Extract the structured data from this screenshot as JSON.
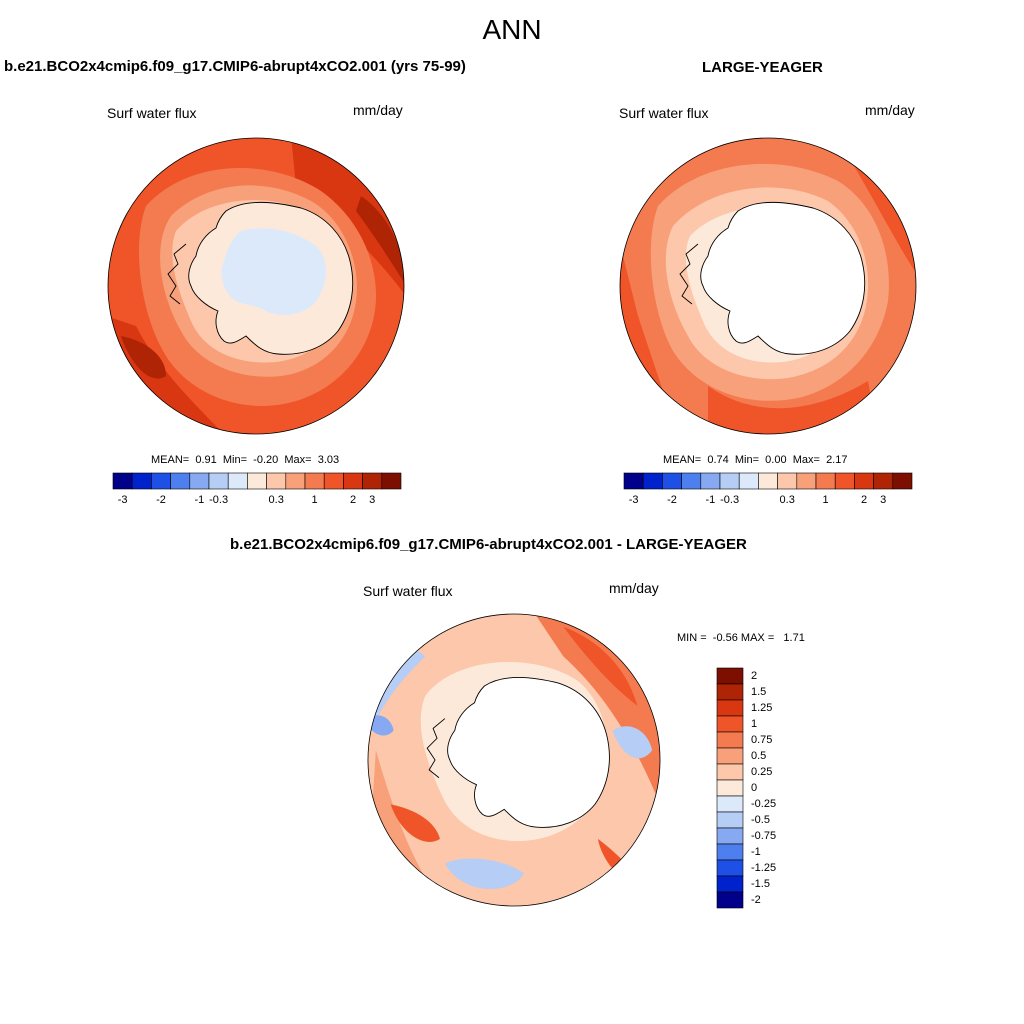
{
  "figure": {
    "season": "ANN"
  },
  "panels": [
    {
      "title": "b.e21.BCO2x4cmip6.f09_g17.CMIP6-abrupt4xCO2.001 (yrs 75-99)",
      "variable": "Surf water flux",
      "units": "mm/day",
      "stats": {
        "mean_label": "MEAN=",
        "mean": "0.91",
        "min_label": "Min=",
        "min": "-0.20",
        "max_label": "Max=",
        "max": "3.03"
      },
      "colorbar_labels": [
        "-3",
        "-2",
        "-1",
        "-0.3",
        "0.3",
        "1",
        "2",
        "3"
      ]
    },
    {
      "title": "LARGE-YEAGER",
      "variable": "Surf water flux",
      "units": "mm/day",
      "stats": {
        "mean_label": "MEAN=",
        "mean": "0.74",
        "min_label": "Min=",
        "min": "0.00",
        "max_label": "Max=",
        "max": "2.17"
      },
      "colorbar_labels": [
        "-3",
        "-2",
        "-1",
        "-0.3",
        "0.3",
        "1",
        "2",
        "3"
      ]
    },
    {
      "title": "b.e21.BCO2x4cmip6.f09_g17.CMIP6-abrupt4xCO2.001 - LARGE-YEAGER",
      "variable": "Surf water flux",
      "units": "mm/day",
      "stats": {
        "min_label": "MIN =",
        "min": "-0.56",
        "max_label": "MAX =",
        "max": "1.71"
      },
      "colorbar_labels": [
        "2",
        "1.5",
        "1.25",
        "1",
        "0.75",
        "0.5",
        "0.25",
        "0",
        "-0.25",
        "-0.5",
        "-0.75",
        "-1",
        "-1.25",
        "-1.5",
        "-2"
      ]
    }
  ],
  "colormaps": {
    "absolute": [
      "#00008b",
      "#0022cc",
      "#1f50e6",
      "#4d7fef",
      "#86a9f2",
      "#b6cdf5",
      "#dce9fb",
      "#fde9d9",
      "#fcc7aa",
      "#f7a07a",
      "#f47a50",
      "#ef5528",
      "#d93612",
      "#b02406",
      "#7d0f00"
    ],
    "difference": [
      "#00008b",
      "#0022cc",
      "#1f50e6",
      "#4d7fef",
      "#86a9f2",
      "#b6cdf5",
      "#dce9fb",
      "#fde9d9",
      "#fcc7aa",
      "#f7a07a",
      "#f47a50",
      "#ef5528",
      "#d93612",
      "#b02406",
      "#7d0f00"
    ]
  }
}
